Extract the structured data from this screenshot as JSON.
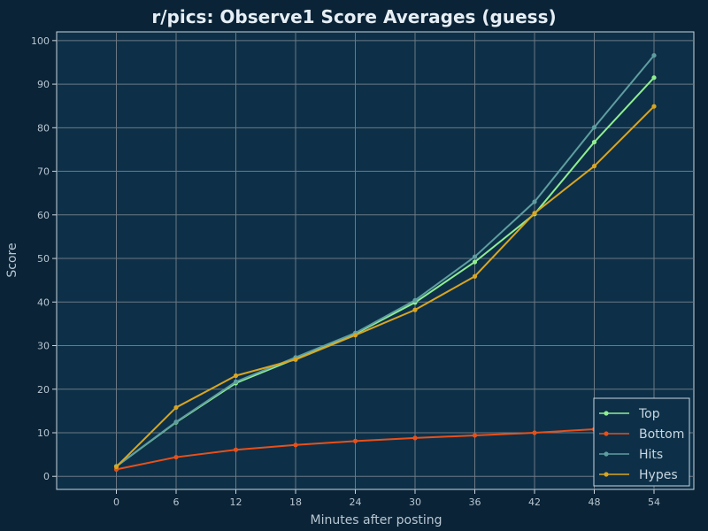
{
  "chart_data": {
    "type": "line",
    "title": "r/pics: Observe1 Score Averages (guess)",
    "xlabel": "Minutes after posting",
    "ylabel": "Score",
    "xlim": [
      -6,
      58
    ],
    "ylim": [
      -3,
      102
    ],
    "x": [
      0,
      6,
      12,
      18,
      24,
      30,
      36,
      42,
      48,
      54
    ],
    "xticks": [
      "0",
      "6",
      "12",
      "18",
      "24",
      "30",
      "36",
      "42",
      "48",
      "54"
    ],
    "yticks": [
      "0",
      "10",
      "20",
      "30",
      "40",
      "50",
      "60",
      "70",
      "80",
      "90",
      "100"
    ],
    "ytick_values": [
      0,
      10,
      20,
      30,
      40,
      50,
      60,
      70,
      80,
      90,
      100
    ],
    "grid": true,
    "legend_position": "bottom-right",
    "series": [
      {
        "name": "Top",
        "color": "#90ee90",
        "values": [
          2.3,
          12.4,
          21.4,
          27.0,
          32.7,
          39.9,
          49.2,
          60.2,
          76.7,
          91.5
        ]
      },
      {
        "name": "Bottom",
        "color": "#e8501a",
        "values": [
          1.6,
          4.4,
          6.1,
          7.2,
          8.1,
          8.8,
          9.4,
          10.0,
          10.8,
          11.6
        ]
      },
      {
        "name": "Hits",
        "color": "#5f9ea0",
        "values": [
          2.3,
          12.5,
          21.7,
          27.3,
          32.9,
          40.4,
          50.4,
          63.0,
          80.1,
          96.6
        ]
      },
      {
        "name": "Hypes",
        "color": "#daa520",
        "values": [
          2.2,
          15.8,
          23.1,
          26.8,
          32.4,
          38.2,
          45.9,
          60.4,
          71.2,
          84.9
        ]
      }
    ],
    "background_color": "#0a2336",
    "plot_background_color": "#0d3048",
    "grid_color": "#6c7884"
  }
}
